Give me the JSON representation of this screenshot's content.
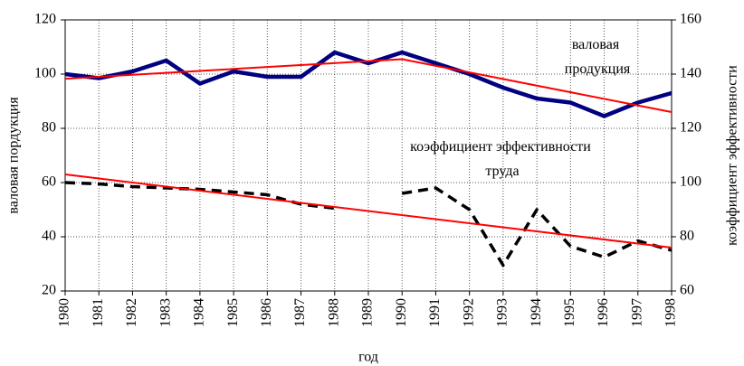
{
  "chart_data": {
    "type": "line",
    "x": [
      1980,
      1981,
      1982,
      1983,
      1984,
      1985,
      1986,
      1987,
      1988,
      1989,
      1990,
      1991,
      1992,
      1993,
      1994,
      1995,
      1996,
      1997,
      1998
    ],
    "xlim": [
      1980,
      1998
    ],
    "xticks": [
      1980,
      1981,
      1982,
      1983,
      1984,
      1985,
      1986,
      1987,
      1988,
      1989,
      1990,
      1991,
      1992,
      1993,
      1994,
      1995,
      1996,
      1997,
      1998
    ],
    "xlabel": "год",
    "ylabel": "валовая пордукция",
    "y2label": "коэффициент эффективности",
    "ylim": [
      20,
      120
    ],
    "yticks": [
      20,
      40,
      60,
      80,
      100,
      120
    ],
    "y2lim": [
      60,
      160
    ],
    "y2ticks": [
      60,
      80,
      100,
      120,
      140,
      160
    ],
    "grid": true,
    "series": [
      {
        "name": "валовая продукция",
        "color": "#000080",
        "axis": "y",
        "values": [
          100,
          98.5,
          101,
          105,
          96.5,
          101,
          99,
          99,
          108,
          104,
          108,
          104,
          100,
          95,
          91,
          89.5,
          84.5,
          89.5,
          93
        ]
      },
      {
        "name": "коэффициент эффективности труда",
        "color": "#000000",
        "axis": "y2",
        "dashed": true,
        "values": [
          100,
          99.5,
          98.5,
          98,
          97.5,
          96.5,
          95.5,
          92,
          90.5,
          null,
          96,
          98,
          90,
          69.5,
          90,
          76.5,
          72.5,
          78.5,
          75
        ]
      },
      {
        "color": "#ff0000",
        "axis": "y",
        "x": [
          1980,
          1990,
          1998
        ],
        "values": [
          98.3,
          105.5,
          86
        ]
      },
      {
        "color": "#ff0000",
        "axis": "y2",
        "x": [
          1980,
          1998
        ],
        "values": [
          103,
          76
        ]
      }
    ]
  }
}
